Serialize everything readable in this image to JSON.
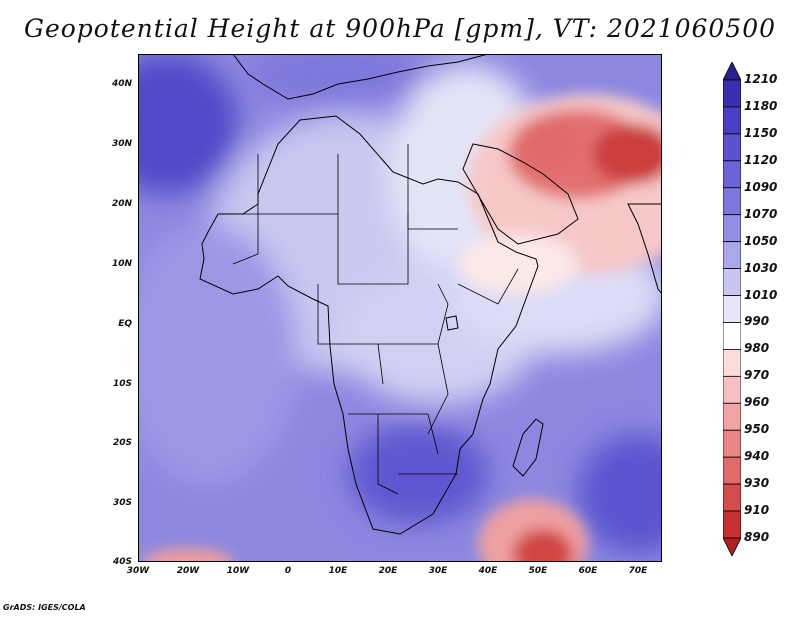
{
  "title": "Geopotential Height at 900hPa [gpm], VT: 2021060500",
  "footer": "GrADS: IGES/COLA",
  "map": {
    "projection": "lat-lon",
    "lon_range": [
      -30,
      75
    ],
    "lat_range": [
      -40,
      45
    ],
    "variable": "Geopotential Height",
    "level": "900hPa",
    "units": "gpm",
    "valid_time": "2021060500"
  },
  "axes": {
    "y_labels": [
      "40N",
      "30N",
      "20N",
      "10N",
      "EQ",
      "10S",
      "20S",
      "30S",
      "40S"
    ],
    "x_labels": [
      "30W",
      "20W",
      "10W",
      "0",
      "10E",
      "20E",
      "30E",
      "40E",
      "50E",
      "60E",
      "70E"
    ]
  },
  "colorbar": {
    "labels": [
      "1210",
      "1180",
      "1150",
      "1120",
      "1090",
      "1070",
      "1050",
      "1030",
      "1010",
      "990",
      "980",
      "970",
      "960",
      "950",
      "940",
      "930",
      "910",
      "890"
    ],
    "colors": [
      "#2a1f8f",
      "#3a2fb0",
      "#4a3fc4",
      "#5a52cf",
      "#6b64d6",
      "#7c77dc",
      "#918ee3",
      "#aaa8ea",
      "#c6c6f1",
      "#e6e6f8",
      "#ffffff",
      "#fbdcdc",
      "#f6c0c0",
      "#f1a4a4",
      "#ea8686",
      "#e26a6a",
      "#d84b4b",
      "#c93232",
      "#b02121"
    ]
  }
}
